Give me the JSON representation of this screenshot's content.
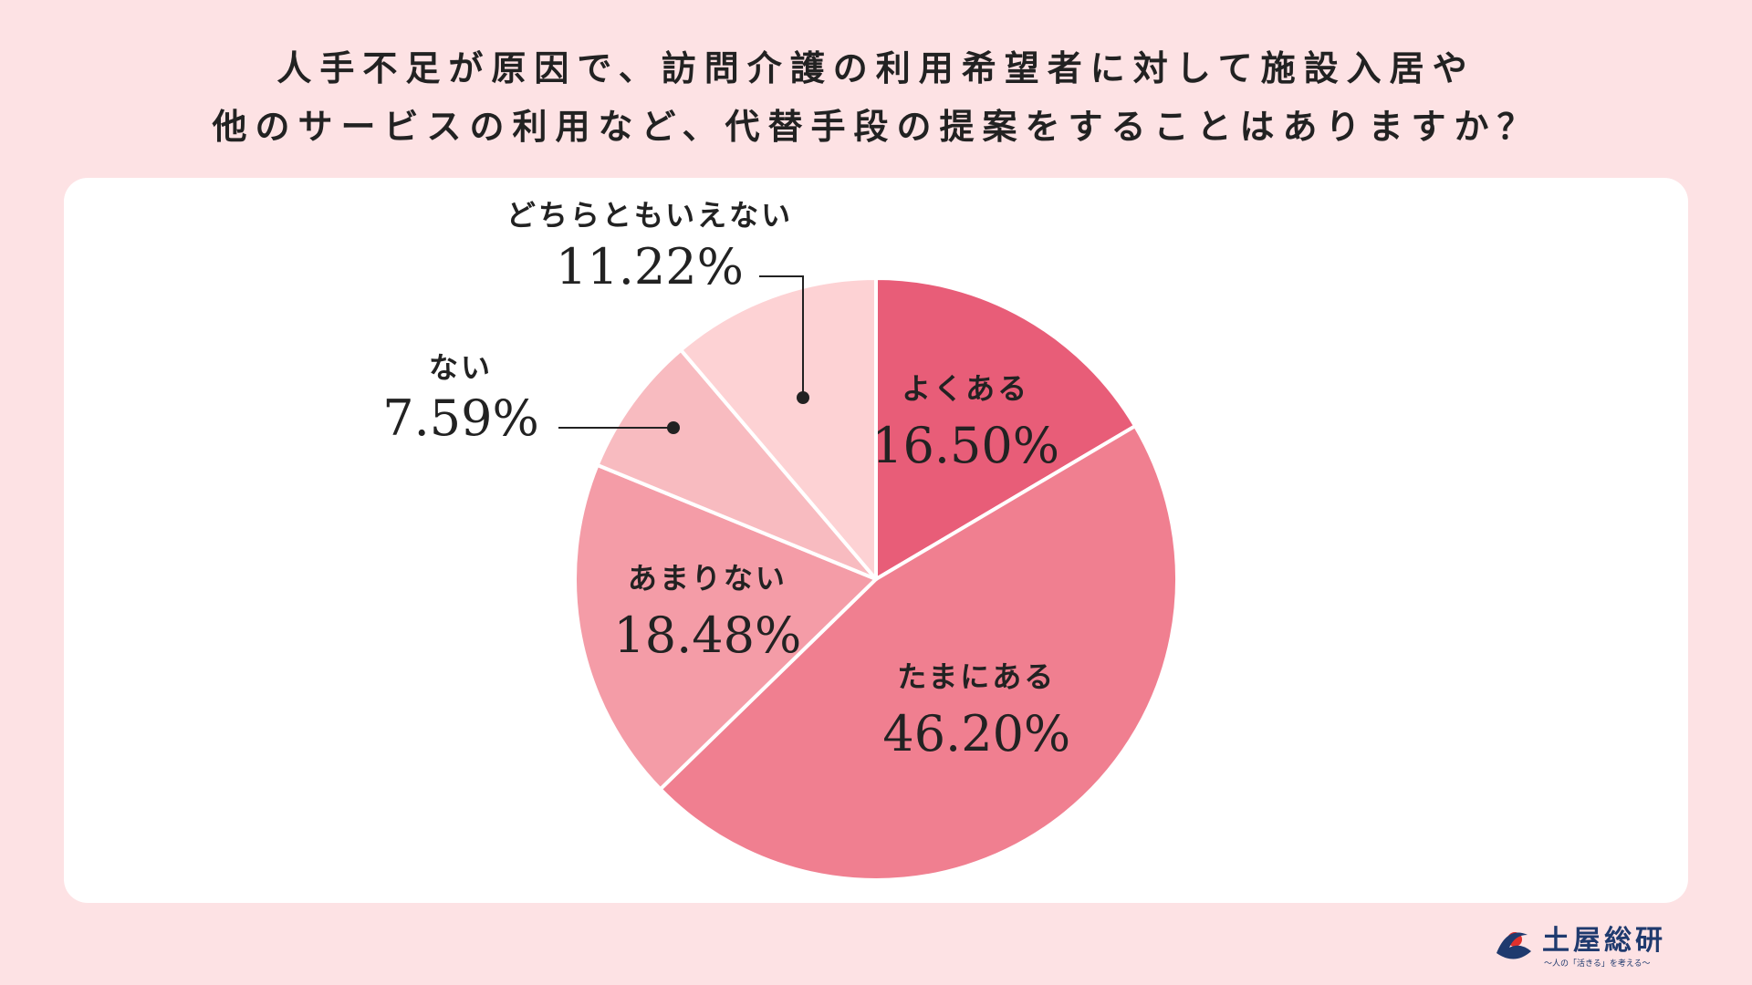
{
  "title": {
    "line1": "人手不足が原因で、訪問介護の利用希望者に対して施設入居や",
    "line2": "他のサービスの利用など、代替手段の提案をすることはありますか？"
  },
  "logo": {
    "name": "土屋総研",
    "tagline": "〜人の「活きる」を考える〜"
  },
  "colors": {
    "background": "#fde2e4",
    "card": "#ffffff",
    "text": "#222222",
    "slices": [
      "#e85d78",
      "#f07f90",
      "#f49ca7",
      "#f8bbc0",
      "#fdd2d4"
    ],
    "logo_navy": "#1f3a6e",
    "logo_red": "#e0302c"
  },
  "chart_data": {
    "type": "pie",
    "start": "12 o'clock, clockwise",
    "slices": [
      {
        "label": "よくある",
        "value": 16.5,
        "display": "16.50%"
      },
      {
        "label": "たまにある",
        "value": 46.2,
        "display": "46.20%"
      },
      {
        "label": "あまりない",
        "value": 18.48,
        "display": "18.48%"
      },
      {
        "label": "ない",
        "value": 7.59,
        "display": "7.59%"
      },
      {
        "label": "どちらともいえない",
        "value": 11.22,
        "display": "11.22%"
      }
    ]
  }
}
